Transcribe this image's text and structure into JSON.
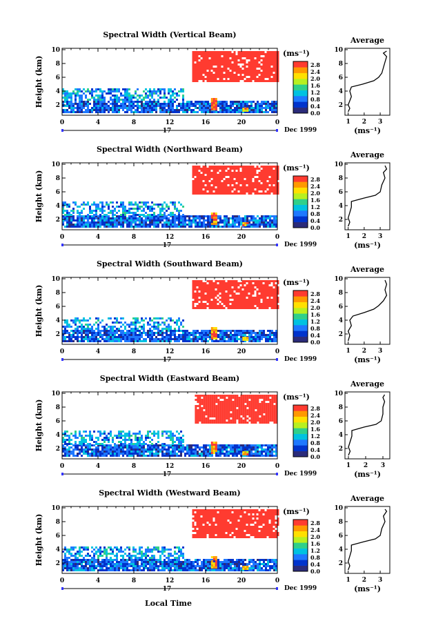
{
  "chart_data": {
    "type": "heatmap",
    "figure_xlabel": "Local Time",
    "colorbar": {
      "unit": "(ms⁻¹)",
      "ticks": [
        "2.8",
        "2.4",
        "2.0",
        "1.6",
        "1.2",
        "0.8",
        "0.4",
        "0.0"
      ],
      "range": [
        0,
        3.0
      ],
      "colors": [
        "#2b2b7a",
        "#0033cc",
        "#1e78ff",
        "#00c2e0",
        "#2fd08a",
        "#b8f020",
        "#ffe000",
        "#ff9900",
        "#ff3b30"
      ]
    },
    "panels": [
      {
        "title": "Spectral Width (Vertical Beam)",
        "xticks": [
          "0",
          "4",
          "8",
          "12",
          "16",
          "20",
          "0"
        ],
        "xlim": [
          0,
          24
        ],
        "ylabel": "Height (km)",
        "yticks": [
          "2",
          "4",
          "6",
          "8",
          "10"
        ],
        "ylim": [
          0.5,
          10.2
        ],
        "date_marker": "17",
        "date_label": "Dec 1999",
        "regions": [
          {
            "x0": 14.5,
            "x1": 24,
            "y0": 5.6,
            "y1": 9.8,
            "value": 2.9
          },
          {
            "x0": 0,
            "x1": 24,
            "y0": 0.9,
            "y1": 2.6,
            "value": 0.7
          },
          {
            "x0": 0,
            "x1": 13.5,
            "y0": 2.6,
            "y1": 4.4,
            "value": 1.0
          },
          {
            "x0": 16.6,
            "x1": 17.2,
            "y0": 1.2,
            "y1": 3.0,
            "value": 2.6
          },
          {
            "x0": 20.1,
            "x1": 20.6,
            "y0": 1.0,
            "y1": 1.6,
            "value": 2.3
          }
        ],
        "profile": {
          "title": "Average",
          "xticks": [
            "1",
            "2",
            "3"
          ],
          "xlim": [
            0.8,
            3.6
          ],
          "xlabel": "(ms⁻¹)",
          "yticks": [
            "2",
            "4",
            "6",
            "8",
            "10"
          ],
          "ylim": [
            0.5,
            10.2
          ],
          "points": [
            [
              1.0,
              1.0
            ],
            [
              1.1,
              1.5
            ],
            [
              1.0,
              2.0
            ],
            [
              1.1,
              2.6
            ],
            [
              1.2,
              3.2
            ],
            [
              1.1,
              4.0
            ],
            [
              1.2,
              4.6
            ],
            [
              1.9,
              5.0
            ],
            [
              2.6,
              5.5
            ],
            [
              2.9,
              6.0
            ],
            [
              3.1,
              6.6
            ],
            [
              3.2,
              7.4
            ],
            [
              3.3,
              8.2
            ],
            [
              3.4,
              9.0
            ],
            [
              3.2,
              9.5
            ],
            [
              3.4,
              9.8
            ]
          ]
        }
      },
      {
        "title": "Spectral Width (Northward Beam)",
        "xticks": [
          "0",
          "4",
          "8",
          "12",
          "16",
          "20",
          "0"
        ],
        "xlim": [
          0,
          24
        ],
        "ylabel": "Height (km)",
        "yticks": [
          "2",
          "4",
          "6",
          "8",
          "10"
        ],
        "ylim": [
          0.5,
          10.2
        ],
        "date_marker": "17",
        "date_label": "Dec 1999",
        "regions": [
          {
            "x0": 14.5,
            "x1": 24,
            "y0": 5.8,
            "y1": 9.8,
            "value": 2.9
          },
          {
            "x0": 0,
            "x1": 24,
            "y0": 0.9,
            "y1": 2.6,
            "value": 0.7
          },
          {
            "x0": 0,
            "x1": 13.5,
            "y0": 2.6,
            "y1": 4.6,
            "value": 1.0
          },
          {
            "x0": 16.6,
            "x1": 17.2,
            "y0": 1.2,
            "y1": 3.0,
            "value": 2.6
          },
          {
            "x0": 20.1,
            "x1": 20.6,
            "y0": 1.0,
            "y1": 1.6,
            "value": 2.3
          }
        ],
        "profile": {
          "title": "Average",
          "xticks": [
            "1",
            "2",
            "3"
          ],
          "xlim": [
            0.8,
            3.6
          ],
          "xlabel": "(ms⁻¹)",
          "yticks": [
            "2",
            "4",
            "6",
            "8",
            "10"
          ],
          "ylim": [
            0.5,
            10.2
          ],
          "points": [
            [
              1.0,
              1.0
            ],
            [
              1.1,
              1.6
            ],
            [
              1.0,
              2.2
            ],
            [
              1.1,
              3.0
            ],
            [
              1.2,
              3.8
            ],
            [
              1.2,
              4.6
            ],
            [
              2.0,
              5.1
            ],
            [
              2.7,
              5.5
            ],
            [
              3.0,
              6.0
            ],
            [
              3.1,
              7.0
            ],
            [
              3.3,
              8.0
            ],
            [
              3.2,
              8.8
            ],
            [
              3.4,
              9.3
            ],
            [
              3.3,
              9.8
            ]
          ]
        }
      },
      {
        "title": "Spectral Width (Southward Beam)",
        "xticks": [
          "0",
          "4",
          "8",
          "12",
          "16",
          "20",
          "0"
        ],
        "xlim": [
          0,
          24
        ],
        "ylabel": "Height (km)",
        "yticks": [
          "2",
          "4",
          "6",
          "8",
          "10"
        ],
        "ylim": [
          0.5,
          10.2
        ],
        "date_marker": "17",
        "date_label": "Dec 1999",
        "regions": [
          {
            "x0": 14.5,
            "x1": 24,
            "y0": 5.6,
            "y1": 9.8,
            "value": 2.9
          },
          {
            "x0": 0,
            "x1": 24,
            "y0": 0.9,
            "y1": 2.6,
            "value": 0.7
          },
          {
            "x0": 0,
            "x1": 13.5,
            "y0": 2.6,
            "y1": 4.4,
            "value": 1.0
          },
          {
            "x0": 16.6,
            "x1": 17.2,
            "y0": 1.2,
            "y1": 3.0,
            "value": 2.6
          },
          {
            "x0": 20.1,
            "x1": 20.6,
            "y0": 1.0,
            "y1": 1.6,
            "value": 2.3
          }
        ],
        "profile": {
          "title": "Average",
          "xticks": [
            "1",
            "2",
            "3"
          ],
          "xlim": [
            0.8,
            3.6
          ],
          "xlabel": "(ms⁻¹)",
          "yticks": [
            "2",
            "4",
            "6",
            "8",
            "10"
          ],
          "ylim": [
            0.5,
            10.2
          ],
          "points": [
            [
              1.0,
              1.0
            ],
            [
              1.1,
              1.8
            ],
            [
              1.0,
              2.4
            ],
            [
              1.2,
              3.2
            ],
            [
              1.1,
              4.0
            ],
            [
              1.3,
              4.6
            ],
            [
              2.0,
              5.1
            ],
            [
              2.6,
              5.6
            ],
            [
              2.9,
              6.1
            ],
            [
              3.2,
              6.8
            ],
            [
              3.4,
              7.6
            ],
            [
              3.3,
              8.4
            ],
            [
              3.4,
              9.2
            ],
            [
              3.3,
              9.8
            ]
          ]
        }
      },
      {
        "title": "Spectral Width (Eastward Beam)",
        "xticks": [
          "0",
          "4",
          "8",
          "12",
          "16",
          "20",
          "0"
        ],
        "xlim": [
          0,
          24
        ],
        "ylabel": "Height (km)",
        "yticks": [
          "2",
          "4",
          "6",
          "8",
          "10"
        ],
        "ylim": [
          0.5,
          10.2
        ],
        "date_marker": "17",
        "date_label": "Dec 1999",
        "regions": [
          {
            "x0": 14.8,
            "x1": 24,
            "y0": 5.8,
            "y1": 9.8,
            "value": 2.9
          },
          {
            "x0": 0,
            "x1": 24,
            "y0": 0.9,
            "y1": 2.6,
            "value": 0.7
          },
          {
            "x0": 0,
            "x1": 13.5,
            "y0": 2.6,
            "y1": 4.6,
            "value": 1.0
          },
          {
            "x0": 16.6,
            "x1": 17.2,
            "y0": 1.2,
            "y1": 3.0,
            "value": 2.6
          },
          {
            "x0": 20.1,
            "x1": 20.6,
            "y0": 1.0,
            "y1": 1.6,
            "value": 2.3
          }
        ],
        "profile": {
          "title": "Average",
          "xticks": [
            "1",
            "2",
            "3"
          ],
          "xlim": [
            0.8,
            3.4
          ],
          "xlabel": "(ms⁻¹)",
          "yticks": [
            "2",
            "4",
            "6",
            "8",
            "10"
          ],
          "ylim": [
            0.5,
            10.2
          ],
          "points": [
            [
              1.0,
              1.0
            ],
            [
              1.1,
              1.6
            ],
            [
              1.0,
              2.2
            ],
            [
              1.1,
              3.0
            ],
            [
              1.2,
              3.8
            ],
            [
              1.2,
              4.6
            ],
            [
              1.9,
              5.1
            ],
            [
              2.6,
              5.5
            ],
            [
              2.9,
              6.0
            ],
            [
              3.0,
              7.0
            ],
            [
              3.0,
              8.0
            ],
            [
              3.1,
              8.8
            ],
            [
              3.0,
              9.4
            ],
            [
              3.1,
              9.8
            ]
          ]
        }
      },
      {
        "title": "Spectral Width (Westward Beam)",
        "xticks": [
          "0",
          "4",
          "8",
          "12",
          "16",
          "20",
          "0"
        ],
        "xlim": [
          0,
          24
        ],
        "ylabel": "Height (km)",
        "yticks": [
          "2",
          "4",
          "6",
          "8",
          "10"
        ],
        "ylim": [
          0.5,
          10.2
        ],
        "date_marker": "17",
        "date_label": "Dec 1999",
        "regions": [
          {
            "x0": 14.5,
            "x1": 24,
            "y0": 5.6,
            "y1": 9.8,
            "value": 2.9
          },
          {
            "x0": 0,
            "x1": 24,
            "y0": 0.9,
            "y1": 2.6,
            "value": 0.7
          },
          {
            "x0": 0,
            "x1": 13.5,
            "y0": 2.6,
            "y1": 4.4,
            "value": 1.0
          },
          {
            "x0": 16.6,
            "x1": 17.2,
            "y0": 1.2,
            "y1": 3.0,
            "value": 2.6
          },
          {
            "x0": 20.1,
            "x1": 20.6,
            "y0": 1.0,
            "y1": 1.6,
            "value": 2.3
          }
        ],
        "profile": {
          "title": "Average",
          "xticks": [
            "1",
            "2",
            "3"
          ],
          "xlim": [
            0.8,
            3.6
          ],
          "xlabel": "(ms⁻¹)",
          "yticks": [
            "2",
            "4",
            "6",
            "8",
            "10"
          ],
          "ylim": [
            0.5,
            10.2
          ],
          "points": [
            [
              1.0,
              1.0
            ],
            [
              1.1,
              1.6
            ],
            [
              1.0,
              2.2
            ],
            [
              1.1,
              3.0
            ],
            [
              1.2,
              3.8
            ],
            [
              1.2,
              4.6
            ],
            [
              2.0,
              5.1
            ],
            [
              2.7,
              5.5
            ],
            [
              3.0,
              6.0
            ],
            [
              3.1,
              7.0
            ],
            [
              3.3,
              8.0
            ],
            [
              3.2,
              8.8
            ],
            [
              3.4,
              9.5
            ],
            [
              3.3,
              9.8
            ]
          ]
        }
      }
    ]
  }
}
